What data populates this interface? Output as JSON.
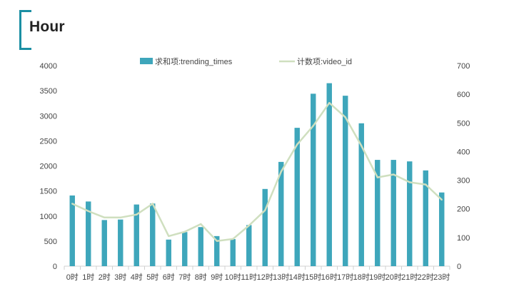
{
  "page": {
    "title": "Hour"
  },
  "colors": {
    "bar": "#3ea6bb",
    "line": "#cfdfbf",
    "accent": "#1b8fa3",
    "axis": "#d0d0d0"
  },
  "chart_data": {
    "type": "bar",
    "title": "",
    "xlabel": "",
    "ylabel": "",
    "categories": [
      "0时",
      "1时",
      "2时",
      "3时",
      "4时",
      "5时",
      "6时",
      "7时",
      "8时",
      "9时",
      "10时",
      "11时",
      "12时",
      "13时",
      "14时",
      "15时",
      "16时",
      "17时",
      "18时",
      "19时",
      "20时",
      "21时",
      "22时",
      "23时"
    ],
    "series": [
      {
        "name": "求和项:trending_times",
        "type": "bar",
        "axis": "left",
        "values": [
          1410,
          1290,
          920,
          930,
          1230,
          1250,
          530,
          680,
          780,
          600,
          540,
          820,
          1540,
          2080,
          2760,
          3440,
          3650,
          3400,
          2850,
          2120,
          2120,
          2090,
          1910,
          1470
        ]
      },
      {
        "name": "计数项:video_id",
        "type": "line",
        "axis": "right",
        "values": [
          218,
          192,
          170,
          170,
          180,
          218,
          105,
          120,
          147,
          88,
          95,
          142,
          195,
          330,
          425,
          490,
          570,
          520,
          420,
          310,
          320,
          293,
          285,
          232
        ]
      }
    ],
    "ylim_left": [
      0,
      4000
    ],
    "yticks_left": [
      0,
      500,
      1000,
      1500,
      2000,
      2500,
      3000,
      3500,
      4000
    ],
    "ylim_right": [
      0,
      700
    ],
    "yticks_right": [
      0,
      100,
      200,
      300,
      400,
      500,
      600,
      700
    ],
    "grid": false,
    "legend": "top-center"
  }
}
